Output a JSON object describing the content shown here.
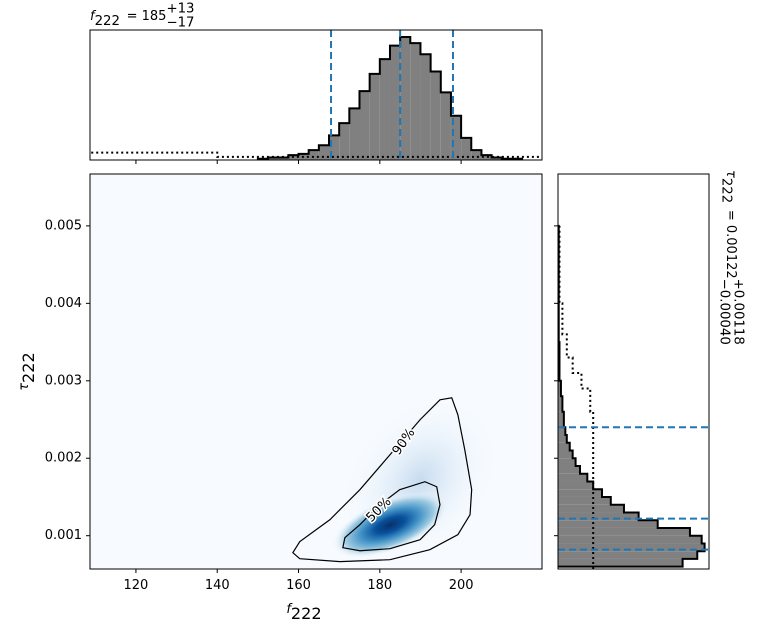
{
  "chart_data": [
    {
      "type": "histogram",
      "orientation": "vertical",
      "title": {
        "symbol": "f",
        "subscript": "222",
        "value": "= 185",
        "upper": "+13",
        "lower": "−17"
      },
      "bins": [
        150,
        152.5,
        155,
        157.5,
        160,
        162.5,
        165,
        167.5,
        170,
        172.5,
        175,
        177.5,
        180,
        182.5,
        185,
        187.5,
        190,
        192.5,
        195,
        197.5,
        200,
        202.5,
        205,
        207.5,
        210,
        212.5,
        215
      ],
      "counts": [
        0.01,
        0.02,
        0.02,
        0.04,
        0.05,
        0.08,
        0.12,
        0.2,
        0.3,
        0.42,
        0.56,
        0.7,
        0.82,
        0.93,
        1.0,
        0.95,
        0.86,
        0.72,
        0.55,
        0.36,
        0.18,
        0.08,
        0.04,
        0.02,
        0.01,
        0.01
      ],
      "color": "#808080",
      "edge_color": "#000000",
      "prior": {
        "bins": [
          109,
          140,
          220
        ],
        "counts": [
          0.06,
          0.025
        ]
      },
      "quantiles": [
        168,
        185,
        198
      ],
      "quantile_color": "#1f77b4",
      "xlim": [
        108.7,
        219.9
      ],
      "ylim": [
        0,
        1.057
      ],
      "xticks": [
        120,
        140,
        160,
        180,
        200
      ]
    },
    {
      "type": "contour",
      "xlabel": {
        "symbol": "f",
        "subscript": "222"
      },
      "ylabel": {
        "symbol": "τ",
        "subscript": "222"
      },
      "contours": [
        {
          "label": "50%",
          "x": [
            170.9,
            171.4,
            175.1,
            180.0,
            184.9,
            191.1,
            194.0,
            194.8,
            193.5,
            189.9,
            182.5,
            175.1
          ],
          "y": [
            0.000845,
            0.000974,
            0.001142,
            0.0014,
            0.001594,
            0.001697,
            0.001632,
            0.0014,
            0.001142,
            0.000948,
            0.000832,
            0.000806
          ]
        },
        {
          "label": "90%",
          "x": [
            158.6,
            160.3,
            167.7,
            175.1,
            182.5,
            189.9,
            194.8,
            197.7,
            199.2,
            200.9,
            202.6,
            202.2,
            199.2,
            192.3,
            182.5,
            170.2,
            160.3
          ],
          "y": [
            0.000781,
            0.000923,
            0.001206,
            0.001594,
            0.002045,
            0.002497,
            0.002755,
            0.00278,
            0.002561,
            0.00211,
            0.001594,
            0.001271,
            0.001013,
            0.000819,
            0.00069,
            0.000665,
            0.000703
          ]
        }
      ],
      "xlim": [
        108.7,
        219.9
      ],
      "ylim": [
        0.00057,
        0.00567
      ],
      "xticks": [
        120,
        140,
        160,
        180,
        200
      ],
      "yticks": [
        0.001,
        0.002,
        0.003,
        0.004,
        0.005
      ]
    },
    {
      "type": "histogram",
      "orientation": "horizontal",
      "title": {
        "symbol": "τ",
        "subscript": "222",
        "value": "= 0.00122",
        "upper": "+0.00118",
        "lower": "−0.00040"
      },
      "bins": [
        0.0006,
        0.0007,
        0.0008,
        0.0009,
        0.001,
        0.0011,
        0.0012,
        0.0013,
        0.0014,
        0.0015,
        0.0016,
        0.0017,
        0.0018,
        0.0019,
        0.002,
        0.0021,
        0.0022,
        0.0023,
        0.0024,
        0.0026,
        0.0028,
        0.003,
        0.0035,
        0.005
      ],
      "counts": [
        0.85,
        0.95,
        1.0,
        0.98,
        0.9,
        0.68,
        0.55,
        0.45,
        0.36,
        0.3,
        0.24,
        0.2,
        0.15,
        0.12,
        0.1,
        0.08,
        0.06,
        0.05,
        0.04,
        0.03,
        0.02,
        0.01,
        0.005
      ],
      "color": "#808080",
      "edge_color": "#000000",
      "prior": {
        "bins": [
          0.00057,
          0.0026,
          0.0029,
          0.0031,
          0.0033,
          0.0036,
          0.004,
          0.005
        ],
        "counts": [
          0.24,
          0.22,
          0.16,
          0.1,
          0.06,
          0.03,
          0.01
        ]
      },
      "quantiles": [
        0.00082,
        0.00122,
        0.0024
      ],
      "quantile_color": "#1f77b4",
      "xlim": [
        0,
        1.03
      ],
      "ylim": [
        0.00057,
        0.00567
      ],
      "yticks": [
        0.001,
        0.002,
        0.003,
        0.004,
        0.005
      ]
    }
  ]
}
